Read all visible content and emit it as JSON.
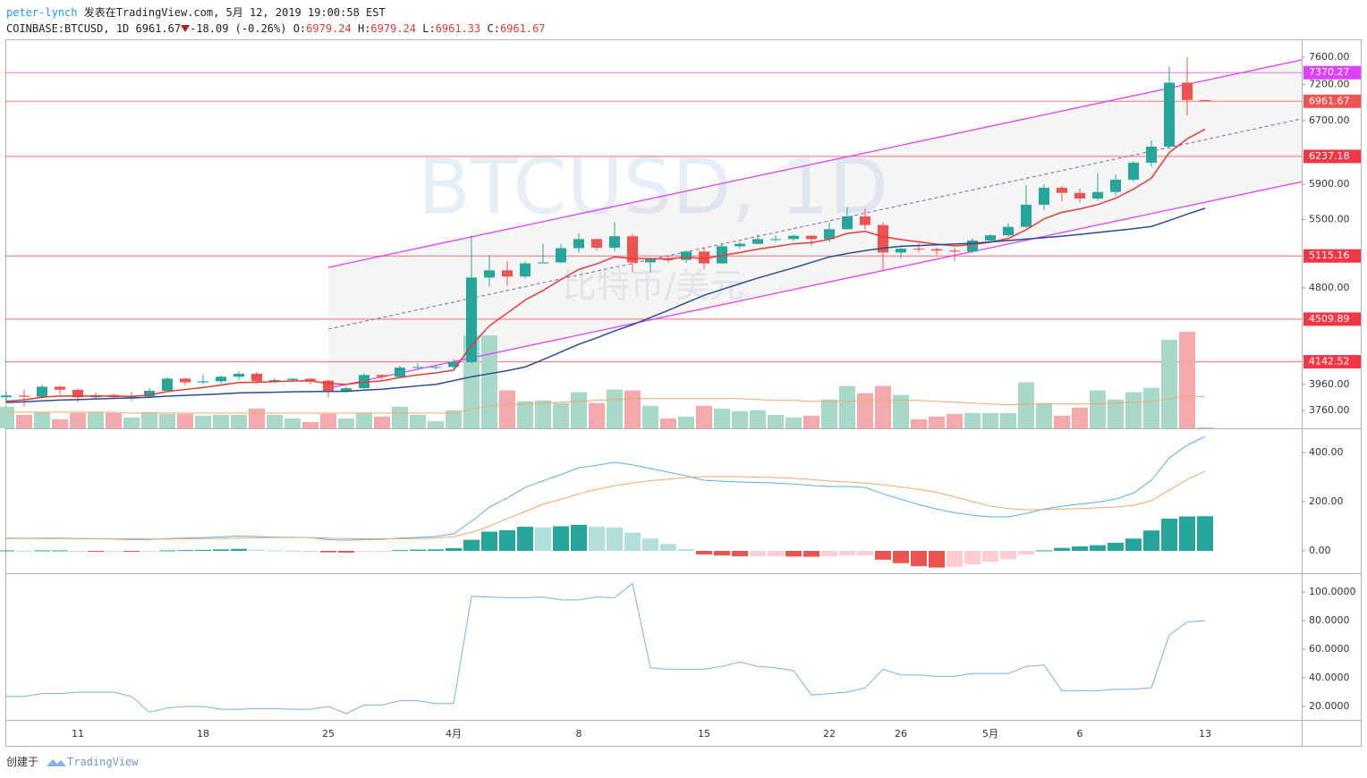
{
  "header": {
    "author": "peter-lynch",
    "published": "发表在TradingView.com, 5月 12, 2019 19:00:58 EST",
    "symbol": "COINBASE:BTCUSD, 1D",
    "last": "6961.67",
    "change": "-18.09 (-0.26%)",
    "ohlc": [
      {
        "label": "O:",
        "value": "6979.24"
      },
      {
        "label": "H:",
        "value": "6979.24"
      },
      {
        "label": "L:",
        "value": "6961.33"
      },
      {
        "label": "C:",
        "value": "6961.67"
      }
    ]
  },
  "footer": {
    "created": "创建于",
    "brand": "TradingView"
  },
  "chart_data": [
    {
      "type": "candlestick",
      "watermark": "BTCUSD, 1D",
      "subtitle_watermark": "比特币/美元",
      "log_scale": true,
      "ylim": [
        3628,
        7862
      ],
      "yticks": [
        {
          "value": 3760,
          "label": "3760.00"
        },
        {
          "value": 3960,
          "label": "3960.00"
        },
        {
          "value": 4800,
          "label": "4800.00"
        },
        {
          "value": 5500,
          "label": "5500.00"
        },
        {
          "value": 5900,
          "label": "5900.00"
        },
        {
          "value": 6700,
          "label": "6700.00"
        },
        {
          "value": 7200,
          "label": "7200.00"
        },
        {
          "value": 7600,
          "label": "7600.00"
        }
      ],
      "up_color": "#26a69a",
      "down_color": "#ef5350",
      "open": [
        3860,
        3873,
        3864,
        3942,
        3918,
        3860,
        3877,
        3861,
        3866,
        3910,
        4006,
        3976,
        3985,
        4021,
        4045,
        3985,
        3995,
        4005,
        3990,
        3910,
        3930,
        4035,
        4020,
        4095,
        4100,
        4100,
        4140,
        4900,
        4970,
        4910,
        5040,
        5050,
        5195,
        5290,
        5200,
        5320,
        5050,
        5080,
        5075,
        5160,
        5040,
        5215,
        5240,
        5290,
        5290,
        5325,
        5290,
        5395,
        5535,
        5440,
        5150,
        5190,
        5185,
        5170,
        5160,
        5275,
        5330,
        5420,
        5665,
        5860,
        5800,
        5735,
        5810,
        5955,
        6160,
        6360,
        7225,
        6979.24
      ],
      "high": [
        3905,
        3920,
        3960,
        3950,
        3925,
        3895,
        3890,
        3900,
        3930,
        4020,
        4010,
        4040,
        4030,
        4065,
        4060,
        4010,
        4010,
        4010,
        3995,
        3950,
        4050,
        4040,
        4110,
        4130,
        4115,
        4165,
        5330,
        5120,
        5060,
        5060,
        5240,
        5240,
        5350,
        5295,
        5470,
        5345,
        5100,
        5120,
        5175,
        5200,
        5250,
        5260,
        5340,
        5330,
        5335,
        5330,
        5470,
        5640,
        5620,
        5470,
        5220,
        5245,
        5200,
        5200,
        5300,
        5345,
        5460,
        5890,
        5900,
        5885,
        5850,
        6030,
        6020,
        6180,
        6440,
        7460,
        7600,
        6979.24
      ],
      "low": [
        3830,
        3790,
        3850,
        3880,
        3820,
        3845,
        3845,
        3830,
        3860,
        3905,
        3955,
        3960,
        3965,
        3995,
        3970,
        3970,
        3980,
        3960,
        3860,
        3895,
        3925,
        3995,
        4015,
        4075,
        4080,
        4085,
        4130,
        4810,
        4820,
        4890,
        5040,
        5040,
        5150,
        5170,
        5165,
        4950,
        4950,
        5050,
        5045,
        4980,
        5035,
        5190,
        5235,
        5260,
        5270,
        5220,
        5260,
        5390,
        5390,
        4970,
        5090,
        5150,
        5125,
        5060,
        5150,
        5260,
        5315,
        5410,
        5605,
        5705,
        5690,
        5710,
        5770,
        5930,
        6110,
        6330,
        6770,
        6961.33
      ],
      "close": [
        3873,
        3864,
        3942,
        3918,
        3860,
        3877,
        3861,
        3866,
        3910,
        4006,
        3976,
        3985,
        4021,
        4045,
        3985,
        3995,
        4005,
        3990,
        3910,
        3930,
        4035,
        4020,
        4095,
        4100,
        4100,
        4140,
        4900,
        4970,
        4910,
        5040,
        5050,
        5195,
        5290,
        5200,
        5320,
        5050,
        5080,
        5075,
        5160,
        5040,
        5215,
        5240,
        5290,
        5290,
        5325,
        5290,
        5395,
        5535,
        5440,
        5150,
        5190,
        5185,
        5170,
        5160,
        5275,
        5330,
        5420,
        5665,
        5860,
        5800,
        5735,
        5810,
        5955,
        6160,
        6360,
        7225,
        6979.24,
        6961.67
      ],
      "volume": [
        24,
        15,
        18,
        10,
        17,
        18,
        17,
        12,
        18,
        16,
        16,
        14,
        15,
        15,
        22,
        15,
        11,
        7,
        16,
        11,
        17,
        13,
        24,
        15,
        8,
        20,
        103,
        103,
        42,
        30,
        31,
        28,
        40,
        28,
        43,
        42,
        25,
        11,
        13,
        25,
        22,
        19,
        20,
        15,
        12,
        14,
        32,
        47,
        39,
        47,
        37,
        10,
        13,
        16,
        17,
        17,
        17,
        51,
        28,
        14,
        23,
        42,
        32,
        40,
        45,
        98,
        107,
        1
      ],
      "volume_up_color": "#a8d8c8",
      "volume_down_color": "#f4a9ad",
      "volume_ma": {
        "color": "#f5a56a",
        "values": [
          18,
          18,
          18,
          18,
          18,
          18,
          18,
          17,
          17,
          17,
          17,
          17,
          17,
          17,
          17,
          17,
          17,
          17,
          17,
          17,
          17,
          17,
          17,
          17,
          17,
          17,
          21,
          25,
          26,
          27,
          28,
          29,
          30,
          31,
          32,
          33,
          33,
          33,
          33,
          33,
          33,
          33,
          32,
          31,
          31,
          30,
          30,
          30,
          31,
          31,
          31,
          31,
          30,
          29,
          28,
          27,
          26,
          27,
          27,
          27,
          27,
          27,
          28,
          29,
          30,
          33,
          36,
          35
        ]
      },
      "moving_averages": [
        {
          "color": "#e53935",
          "values": [
            3830,
            3840,
            3860,
            3870,
            3868,
            3870,
            3868,
            3867,
            3877,
            3905,
            3920,
            3935,
            3955,
            3975,
            3977,
            3982,
            3987,
            3988,
            3968,
            3960,
            3978,
            3988,
            4015,
            4036,
            4052,
            4074,
            4280,
            4450,
            4565,
            4685,
            4775,
            4880,
            4980,
            5035,
            5105,
            5090,
            5088,
            5085,
            5103,
            5087,
            5119,
            5150,
            5185,
            5211,
            5240,
            5252,
            5288,
            5350,
            5372,
            5316,
            5285,
            5260,
            5237,
            5218,
            5232,
            5257,
            5297,
            5389,
            5507,
            5580,
            5618,
            5666,
            5738,
            5844,
            5973,
            6286,
            6460,
            6585
          ]
        },
        {
          "color": "#2a4d8f",
          "values": [
            3820,
            3825,
            3832,
            3838,
            3842,
            3847,
            3851,
            3855,
            3860,
            3868,
            3874,
            3880,
            3886,
            3893,
            3896,
            3899,
            3902,
            3904,
            3905,
            3906,
            3915,
            3922,
            3935,
            3948,
            3960,
            3990,
            4020,
            4045,
            4070,
            4100,
            4160,
            4225,
            4290,
            4345,
            4405,
            4460,
            4525,
            4590,
            4660,
            4730,
            4785,
            4840,
            4895,
            4945,
            4995,
            5050,
            5105,
            5140,
            5170,
            5195,
            5215,
            5222,
            5230,
            5238,
            5245,
            5260,
            5275,
            5290,
            5305,
            5320,
            5340,
            5360,
            5380,
            5400,
            5425,
            5490,
            5560,
            5625
          ]
        }
      ],
      "channel": {
        "color": "#e040fb",
        "mid_color": "#8e5fb0",
        "x": [
          "25",
          "13"
        ],
        "upper": [
          5000,
          7256
        ],
        "middle": [
          4421,
          6449
        ],
        "lower": [
          3930,
          5693
        ]
      },
      "levels": {
        "values": [
          7370.27,
          6961.67,
          6237.18,
          5115.16,
          4509.89,
          4142.52
        ],
        "colors": [
          "#e040fb",
          "#ef5350",
          "#f23645",
          "#f23645",
          "#f23645",
          "#f23645"
        ]
      }
    },
    {
      "type": "line",
      "ylim": [
        -90.9,
        494.5
      ],
      "yticks": [
        {
          "value": 0,
          "label": "0.00"
        },
        {
          "value": 200,
          "label": "200.00"
        },
        {
          "value": 400,
          "label": "400.00"
        }
      ],
      "series": [
        {
          "color": "#5aaee8",
          "values": [
            52,
            51,
            52,
            52,
            50,
            49,
            48,
            46,
            46,
            50,
            52,
            54,
            57,
            60,
            58,
            56,
            55,
            54,
            46,
            43,
            46,
            47,
            52,
            55,
            58,
            69,
            120,
            178,
            215,
            258,
            285,
            310,
            338,
            348,
            360,
            350,
            335,
            320,
            305,
            287,
            283,
            280,
            278,
            276,
            272,
            266,
            262,
            262,
            258,
            232,
            210,
            188,
            170,
            155,
            145,
            138,
            138,
            152,
            170,
            182,
            190,
            198,
            211,
            235,
            287,
            378,
            430,
            465
          ]
        },
        {
          "color": "#f5a56a",
          "values": [
            50,
            50,
            50,
            50,
            50,
            50,
            49,
            49,
            48,
            48,
            49,
            50,
            51,
            52,
            53,
            54,
            54,
            54,
            52,
            50,
            49,
            49,
            49,
            50,
            52,
            58,
            75,
            100,
            131,
            160,
            190,
            210,
            232,
            250,
            265,
            276,
            285,
            292,
            298,
            302,
            302,
            302,
            300,
            298,
            295,
            290,
            284,
            280,
            276,
            268,
            260,
            250,
            238,
            220,
            200,
            182,
            172,
            167,
            168,
            170,
            172,
            175,
            178,
            185,
            204,
            247,
            290,
            324
          ]
        }
      ],
      "histogram": {
        "values": [
          2,
          1,
          2,
          2,
          0,
          -1,
          -1,
          -3,
          -2,
          2,
          3,
          4,
          6,
          8,
          5,
          2,
          1,
          0,
          -6,
          -7,
          -3,
          -2,
          3,
          5,
          6,
          11,
          45,
          78,
          84,
          98,
          95,
          100,
          106,
          98,
          95,
          74,
          50,
          28,
          7,
          -15,
          -19,
          -22,
          -22,
          -22,
          -23,
          -24,
          -22,
          -18,
          -18,
          -36,
          -50,
          -62,
          -68,
          -65,
          -55,
          -44,
          -34,
          -15,
          2,
          12,
          18,
          23,
          33,
          50,
          83,
          131,
          140,
          141
        ],
        "colors": {
          "rising_positive": "#26a69a",
          "falling_positive": "#b2dfdb",
          "falling_negative": "#ef5350",
          "rising_negative": "#ffcdd2"
        }
      }
    },
    {
      "type": "line",
      "ylim": [
        10.6,
        111.9
      ],
      "yticks": [
        {
          "value": 20,
          "label": "20.0000"
        },
        {
          "value": 40,
          "label": "40.0000"
        },
        {
          "value": 60,
          "label": "60.0000"
        },
        {
          "value": 80,
          "label": "80.0000"
        },
        {
          "value": 100,
          "label": "100.0000"
        }
      ],
      "categories": [
        null,
        null,
        null,
        null,
        "11",
        null,
        null,
        null,
        null,
        null,
        null,
        "18",
        null,
        null,
        null,
        null,
        null,
        null,
        "25",
        null,
        null,
        null,
        null,
        null,
        null,
        "4月",
        null,
        null,
        null,
        null,
        null,
        null,
        "8",
        null,
        null,
        null,
        null,
        null,
        null,
        "15",
        null,
        null,
        null,
        null,
        null,
        null,
        "22",
        null,
        null,
        null,
        "26",
        null,
        null,
        null,
        null,
        "5月",
        null,
        null,
        null,
        null,
        "6",
        null,
        null,
        null,
        null,
        null,
        null,
        "13"
      ],
      "series": [
        {
          "color": "#7aaee0",
          "values": [
            27,
            27,
            29,
            29,
            30,
            30,
            30,
            27,
            16,
            19,
            20,
            20,
            18,
            18,
            18.5,
            18.5,
            18,
            18,
            20,
            15,
            21,
            21,
            24,
            24,
            22,
            22,
            97,
            96.5,
            96,
            96,
            96.5,
            94.5,
            94.5,
            96.5,
            96,
            106,
            47,
            46,
            46,
            46,
            48,
            51,
            48,
            47,
            45,
            28,
            29,
            30,
            33,
            46,
            42,
            42,
            41,
            41,
            43,
            43,
            43,
            48,
            49,
            31,
            31,
            31,
            32,
            32,
            33,
            70,
            79,
            80
          ]
        }
      ]
    }
  ]
}
